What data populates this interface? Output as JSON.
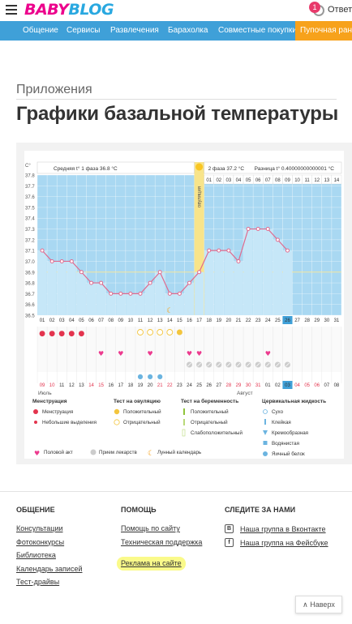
{
  "header": {
    "logo_part1": "BABY",
    "logo_part2": "BLOG",
    "notif_count": "1",
    "answers_label": "Ответь"
  },
  "nav": {
    "items": [
      "Общение",
      "Сервисы",
      "Развлечения",
      "Барахолка",
      "Совместные покупки",
      "Пупочная ранк"
    ]
  },
  "page": {
    "breadcrumb": "Приложения",
    "title": "Графики базальной температуры"
  },
  "chart_data": {
    "type": "line",
    "y_unit": "С°",
    "ylim": [
      36.5,
      37.8
    ],
    "y_ticks": [
      "37.8",
      "37.7",
      "37.6",
      "37.5",
      "37.4",
      "37.3",
      "37.2",
      "37.1",
      "37.0",
      "36.9",
      "36.8",
      "36.7",
      "36.6",
      "36.5"
    ],
    "phase1_label": "Средняя t° 1 фаза 36.8 °C",
    "ovulation_label": "овуляция",
    "phase2_label": "2 фаза 37.2 °C",
    "diff_label": "Разница t° 0.40000000000001 °C",
    "cycle_days_top": [
      "01",
      "02",
      "03",
      "04",
      "05",
      "06",
      "07",
      "08",
      "09",
      "10",
      "11",
      "12",
      "13",
      "14"
    ],
    "cycle_days": [
      "01",
      "02",
      "03",
      "04",
      "05",
      "06",
      "07",
      "08",
      "09",
      "10",
      "11",
      "12",
      "13",
      "14",
      "15",
      "16",
      "17",
      "18",
      "19",
      "20",
      "21",
      "22",
      "23",
      "24",
      "25",
      "26",
      "27",
      "28",
      "29",
      "30",
      "31"
    ],
    "values": [
      37.1,
      37.0,
      37.0,
      37.0,
      36.9,
      36.8,
      36.8,
      36.7,
      36.7,
      36.7,
      36.7,
      36.8,
      36.9,
      36.7,
      36.7,
      36.8,
      36.9,
      37.1,
      37.1,
      37.1,
      37.0,
      37.3,
      37.3,
      37.3,
      37.2,
      37.1
    ],
    "ovulation_day": 17,
    "current_day": 26,
    "menstruation_days": [
      1,
      2,
      3,
      4,
      5
    ],
    "ovulation_test_negative": [
      11,
      12,
      13,
      14
    ],
    "ovulation_test_positive": [
      15
    ],
    "moon_day": 14,
    "sex_days": [
      7,
      9,
      12,
      16,
      17,
      24
    ],
    "mucus_days": [
      11,
      12,
      13
    ],
    "pill_days": [
      16,
      17,
      18,
      19,
      20,
      21,
      22,
      23,
      24,
      25,
      26
    ],
    "calendar_dates": [
      "09",
      "10",
      "11",
      "12",
      "13",
      "14",
      "15",
      "16",
      "17",
      "18",
      "19",
      "20",
      "21",
      "22",
      "23",
      "24",
      "25",
      "26",
      "27",
      "28",
      "29",
      "30",
      "31",
      "01",
      "02",
      "03",
      "04",
      "05",
      "06",
      "07",
      "08"
    ],
    "red_dates": [
      1,
      2,
      6,
      7,
      13,
      14,
      20,
      21,
      22,
      23,
      27,
      28,
      29
    ],
    "month1": "Июль",
    "month2": "Август",
    "colors": {
      "bg": "#a9d8f2",
      "line": "#e06a8e",
      "ovulation": "#f8e48a",
      "highlight": "#3fa0d8"
    }
  },
  "legend": {
    "groups": [
      {
        "title": "Менструация",
        "items": [
          "Менструация",
          "Небольшие выделения"
        ]
      },
      {
        "title": "Тест на овуляцию",
        "items": [
          "Положительный",
          "Отрицательный"
        ]
      },
      {
        "title": "Тест на беременность",
        "items": [
          "Положительный",
          "Отрицательный",
          "Слабоположительный"
        ]
      },
      {
        "title": "Цервикальная жидкость",
        "items": [
          "Сухо",
          "Клейкая",
          "Кремообразная",
          "Водянистая",
          "Яичный белок"
        ]
      }
    ],
    "bottom": [
      "Половой акт",
      "Прием лекарств",
      "Лунный календарь"
    ]
  },
  "footer": {
    "col1_title": "ОБЩЕНИЕ",
    "col1_links": [
      "Консультации",
      "Фотоконкурсы",
      "Библиотека",
      "Календарь записей",
      "Тест-драйвы"
    ],
    "col2_title": "ПОМОЩЬ",
    "col2_links": [
      "Помощь по сайту",
      "Техническая поддержка"
    ],
    "col2_highlight": "Реклама на сайте",
    "col3_title": "СЛЕДИТЕ ЗА НАМИ",
    "col3_links": [
      "Наша группа в Вконтакте",
      "Наша группа на Фейсбуке"
    ],
    "back_label": "Наверх"
  }
}
